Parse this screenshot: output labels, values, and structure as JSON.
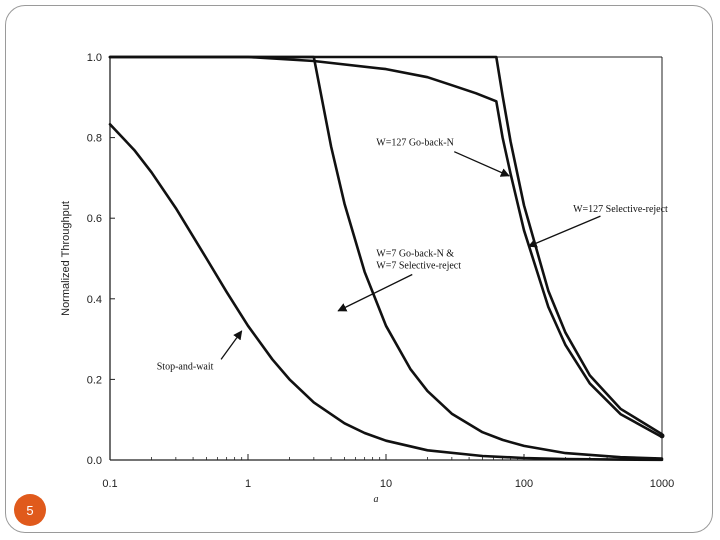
{
  "slide": {
    "page_number": "5",
    "badge_color": "#e05a1c"
  },
  "chart_data": {
    "type": "line",
    "title": "",
    "xlabel": "a",
    "ylabel": "Normalized Throughput",
    "xscale": "log",
    "xlim": [
      0.1,
      1000
    ],
    "ylim": [
      0,
      1.0
    ],
    "xticks": [
      {
        "value": 0.1,
        "label": "0.1"
      },
      {
        "value": 1,
        "label": "1"
      },
      {
        "value": 10,
        "label": "10"
      },
      {
        "value": 100,
        "label": "100"
      },
      {
        "value": 1000,
        "label": "1000"
      }
    ],
    "yticks": [
      {
        "value": 0.0,
        "label": "0.0"
      },
      {
        "value": 0.2,
        "label": "0.2"
      },
      {
        "value": 0.4,
        "label": "0.4"
      },
      {
        "value": 0.6,
        "label": "0.6"
      },
      {
        "value": 0.8,
        "label": "0.8"
      },
      {
        "value": 1.0,
        "label": "1.0"
      }
    ],
    "grid": false,
    "series": [
      {
        "x": [
          0.1,
          0.15,
          0.2,
          0.3,
          0.5,
          0.7,
          1,
          1.5,
          2,
          3,
          5,
          7,
          10,
          20,
          50,
          100,
          200,
          500,
          1000
        ],
        "y": [
          0.833,
          0.769,
          0.714,
          0.625,
          0.5,
          0.417,
          0.333,
          0.25,
          0.2,
          0.143,
          0.091,
          0.067,
          0.048,
          0.024,
          0.0099,
          0.005,
          0.0025,
          0.001,
          0.0005
        ]
      },
      {
        "x": [
          0.1,
          1,
          2,
          3,
          4,
          5,
          7,
          10,
          15,
          20,
          30,
          50,
          70,
          100,
          200,
          500,
          1000
        ],
        "y": [
          1.0,
          1.0,
          1.0,
          1.0,
          0.778,
          0.636,
          0.467,
          0.333,
          0.226,
          0.171,
          0.115,
          0.069,
          0.05,
          0.035,
          0.017,
          0.007,
          0.0035
        ]
      },
      {
        "x": [
          0.1,
          1,
          3,
          10,
          20,
          30,
          45,
          63,
          70,
          80,
          100,
          150,
          200,
          300,
          500,
          1000
        ],
        "y": [
          1.0,
          1.0,
          0.99,
          0.97,
          0.95,
          0.93,
          0.91,
          0.89,
          0.8,
          0.71,
          0.57,
          0.38,
          0.285,
          0.19,
          0.114,
          0.057
        ]
      },
      {
        "x": [
          0.1,
          1,
          10,
          30,
          63,
          70,
          80,
          100,
          150,
          200,
          300,
          500,
          1000
        ],
        "y": [
          1.0,
          1.0,
          1.0,
          1.0,
          1.0,
          0.904,
          0.79,
          0.632,
          0.42,
          0.316,
          0.21,
          0.127,
          0.064
        ]
      }
    ],
    "annotations": [
      {
        "lines": [
          "Stop-and-wait"
        ],
        "anchor_x": 0.9,
        "anchor_y": 0.32,
        "text_x": 0.35,
        "text_y": 0.225,
        "align": "middle"
      },
      {
        "lines": [
          "W=7 Go-back-N &",
          "W=7 Selective-reject"
        ],
        "anchor_x": 4.5,
        "anchor_y": 0.37,
        "text_x": 8.5,
        "text_y": 0.505,
        "align": "start"
      },
      {
        "lines": [
          "W=127 Go-back-N"
        ],
        "anchor_x": 78,
        "anchor_y": 0.705,
        "text_x": 8.5,
        "text_y": 0.78,
        "align": "start"
      },
      {
        "lines": [
          "W=127 Selective-reject"
        ],
        "anchor_x": 108,
        "anchor_y": 0.53,
        "text_x": 500,
        "text_y": 0.615,
        "align": "middle"
      }
    ]
  }
}
